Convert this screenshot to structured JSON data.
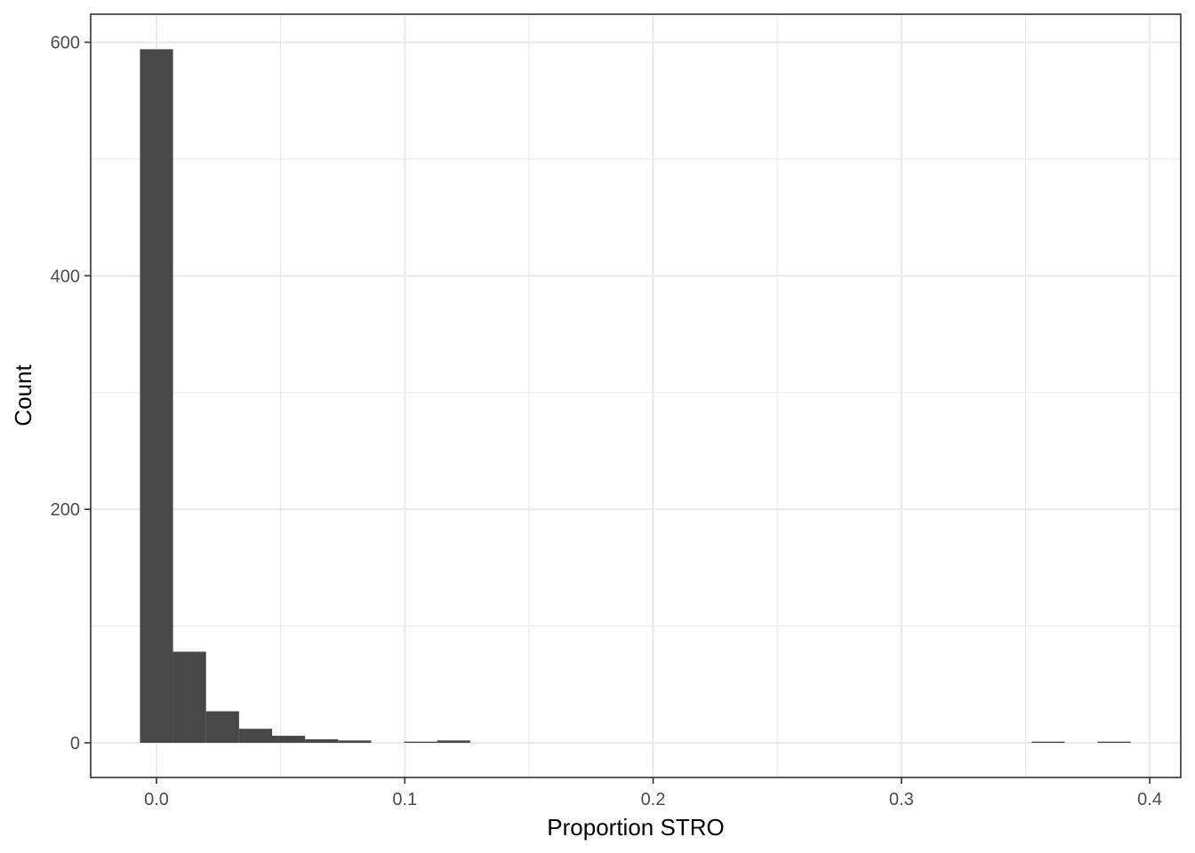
{
  "chart_data": {
    "type": "bar",
    "subtype": "histogram",
    "title": "",
    "xlabel": "Proportion STRO",
    "ylabel": "Count",
    "xlim": [
      -0.0265,
      0.4125
    ],
    "ylim": [
      -29.7,
      624
    ],
    "x_ticks": [
      0.0,
      0.1,
      0.2,
      0.3,
      0.4
    ],
    "x_tick_labels": [
      "0.0",
      "0.1",
      "0.2",
      "0.3",
      "0.4"
    ],
    "y_ticks": [
      0,
      200,
      400,
      600
    ],
    "y_tick_labels": [
      "0",
      "200",
      "400",
      "600"
    ],
    "bin_width": 0.0133,
    "bins": [
      {
        "x": 0.0,
        "count": 594
      },
      {
        "x": 0.0133,
        "count": 78
      },
      {
        "x": 0.0266,
        "count": 27
      },
      {
        "x": 0.0399,
        "count": 12
      },
      {
        "x": 0.0532,
        "count": 6
      },
      {
        "x": 0.0665,
        "count": 3
      },
      {
        "x": 0.0798,
        "count": 2
      },
      {
        "x": 0.1064,
        "count": 1
      },
      {
        "x": 0.1197,
        "count": 2
      },
      {
        "x": 0.3591,
        "count": 1
      },
      {
        "x": 0.3857,
        "count": 1
      }
    ],
    "bar_color": "#474747",
    "grid": true,
    "legend": "none"
  }
}
